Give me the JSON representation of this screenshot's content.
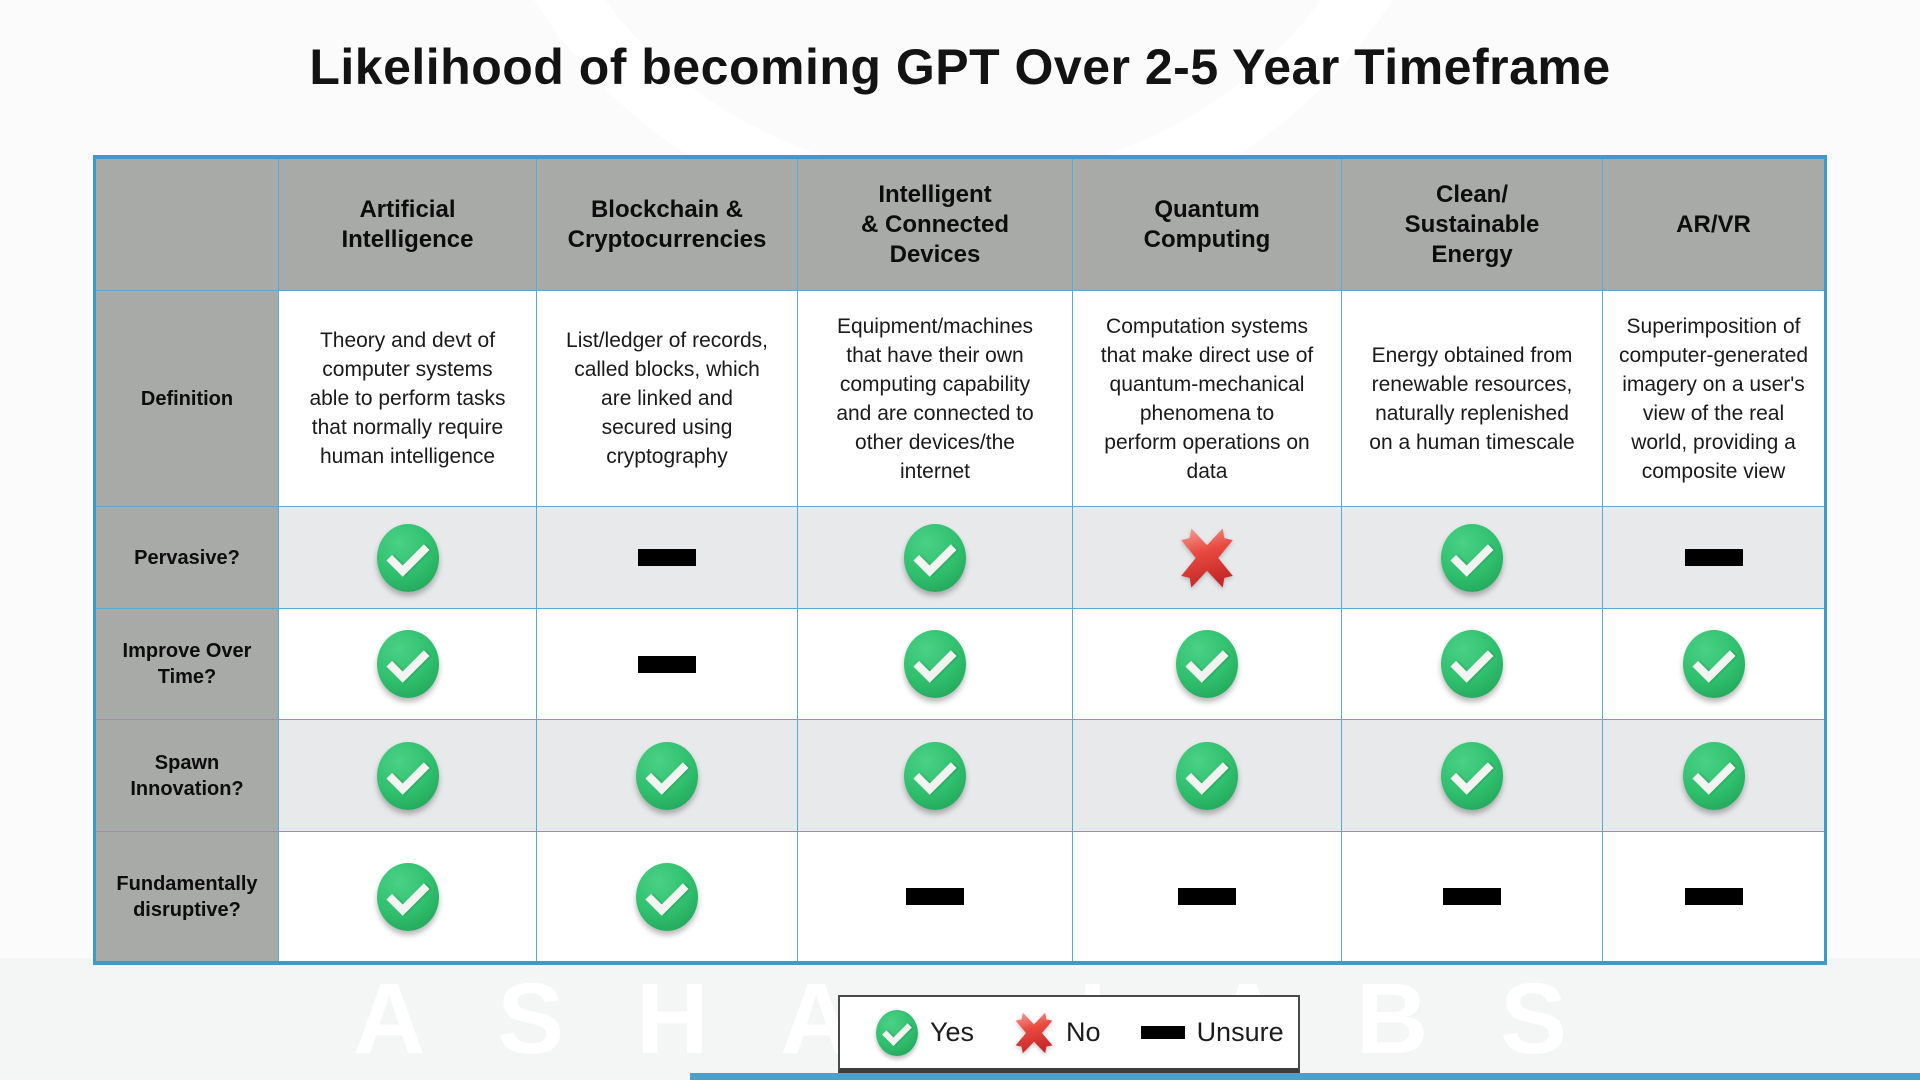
{
  "title": "Likelihood of becoming GPT Over 2-5 Year Timeframe",
  "watermark": "ASHA LABS",
  "table": {
    "corner_label": "",
    "definition_row_label": "Definition",
    "columns": [
      {
        "header": "Artificial\nIntelligence",
        "definition": "Theory and devt of\ncomputer systems\nable to perform tasks\nthat normally require\nhuman intelligence"
      },
      {
        "header": "Blockchain &\nCryptocurrencies",
        "definition": "List/ledger of records,\ncalled blocks, which\nare linked and\nsecured using\ncryptography"
      },
      {
        "header": "Intelligent\n& Connected\nDevices",
        "definition": "Equipment/machines\nthat have their own\ncomputing capability\nand are connected to\nother devices/the\ninternet"
      },
      {
        "header": "Quantum\nComputing",
        "definition": "Computation systems\nthat make direct use of\nquantum-mechanical\nphenomena to\nperform operations on\ndata"
      },
      {
        "header": "Clean/\nSustainable\nEnergy",
        "definition": "Energy obtained from\nrenewable resources,\nnaturally replenished\non a human timescale"
      },
      {
        "header": "AR/VR",
        "definition": "Superimposition of\ncomputer-generated\nimagery on a user's\nview of the real\nworld, providing a\ncomposite view"
      }
    ],
    "criteria": [
      {
        "label": "Pervasive?",
        "values": [
          "yes",
          "unsure",
          "yes",
          "no",
          "yes",
          "unsure"
        ]
      },
      {
        "label": "Improve Over\nTime?",
        "values": [
          "yes",
          "unsure",
          "yes",
          "yes",
          "yes",
          "yes"
        ]
      },
      {
        "label": "Spawn\nInnovation?",
        "values": [
          "yes",
          "yes",
          "yes",
          "yes",
          "yes",
          "yes"
        ]
      },
      {
        "label": "Fundamentally\ndisruptive?",
        "values": [
          "yes",
          "yes",
          "unsure",
          "unsure",
          "unsure",
          "unsure"
        ]
      }
    ]
  },
  "legend": {
    "yes_label": "Yes",
    "no_label": "No",
    "unsure_label": "Unsure"
  },
  "colors": {
    "header_gray": "#a8aaa8",
    "band_gray": "#e7e9eb",
    "border_blue": "#3d9bcb",
    "border_blue_light": "#58a9d4",
    "check_green": "#2fbf6d",
    "cross_red_dark": "#c62828",
    "cross_red_light": "#f7a09a",
    "dash_black": "#000000",
    "accent_bar": "#4aa0c9"
  }
}
